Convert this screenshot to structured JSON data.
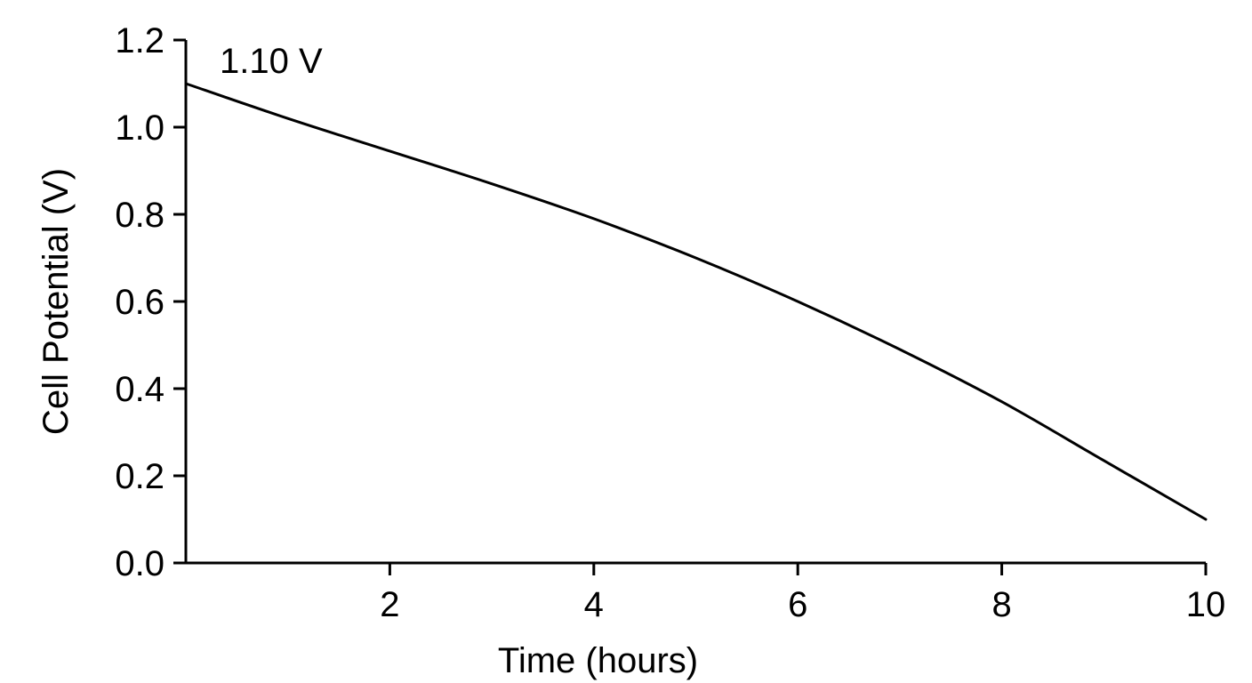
{
  "chart_data": {
    "type": "line",
    "title": "",
    "xlabel": "Time (hours)",
    "ylabel": "Cell Potential (V)",
    "xlim": [
      0,
      10
    ],
    "ylim": [
      0,
      1.2
    ],
    "x_ticks": [
      2,
      4,
      6,
      8,
      10
    ],
    "x_tick_labels": [
      "2",
      "4",
      "6",
      "8",
      "10"
    ],
    "y_ticks": [
      0,
      0.2,
      0.4,
      0.6,
      0.8,
      1.0,
      1.2
    ],
    "y_tick_labels": [
      "0.0",
      "0.2",
      "0.4",
      "0.6",
      "0.8",
      "1.0",
      "1.2"
    ],
    "grid": false,
    "legend": "none",
    "annotations": [
      {
        "text": "1.10 V",
        "x": 0,
        "y": 1.1
      }
    ],
    "series": [
      {
        "x": [
          0,
          1,
          2,
          3,
          4,
          5,
          6,
          7,
          8,
          9,
          10
        ],
        "values": [
          1.1,
          1.02,
          0.945,
          0.87,
          0.79,
          0.7,
          0.6,
          0.49,
          0.37,
          0.235,
          0.1
        ]
      }
    ]
  }
}
